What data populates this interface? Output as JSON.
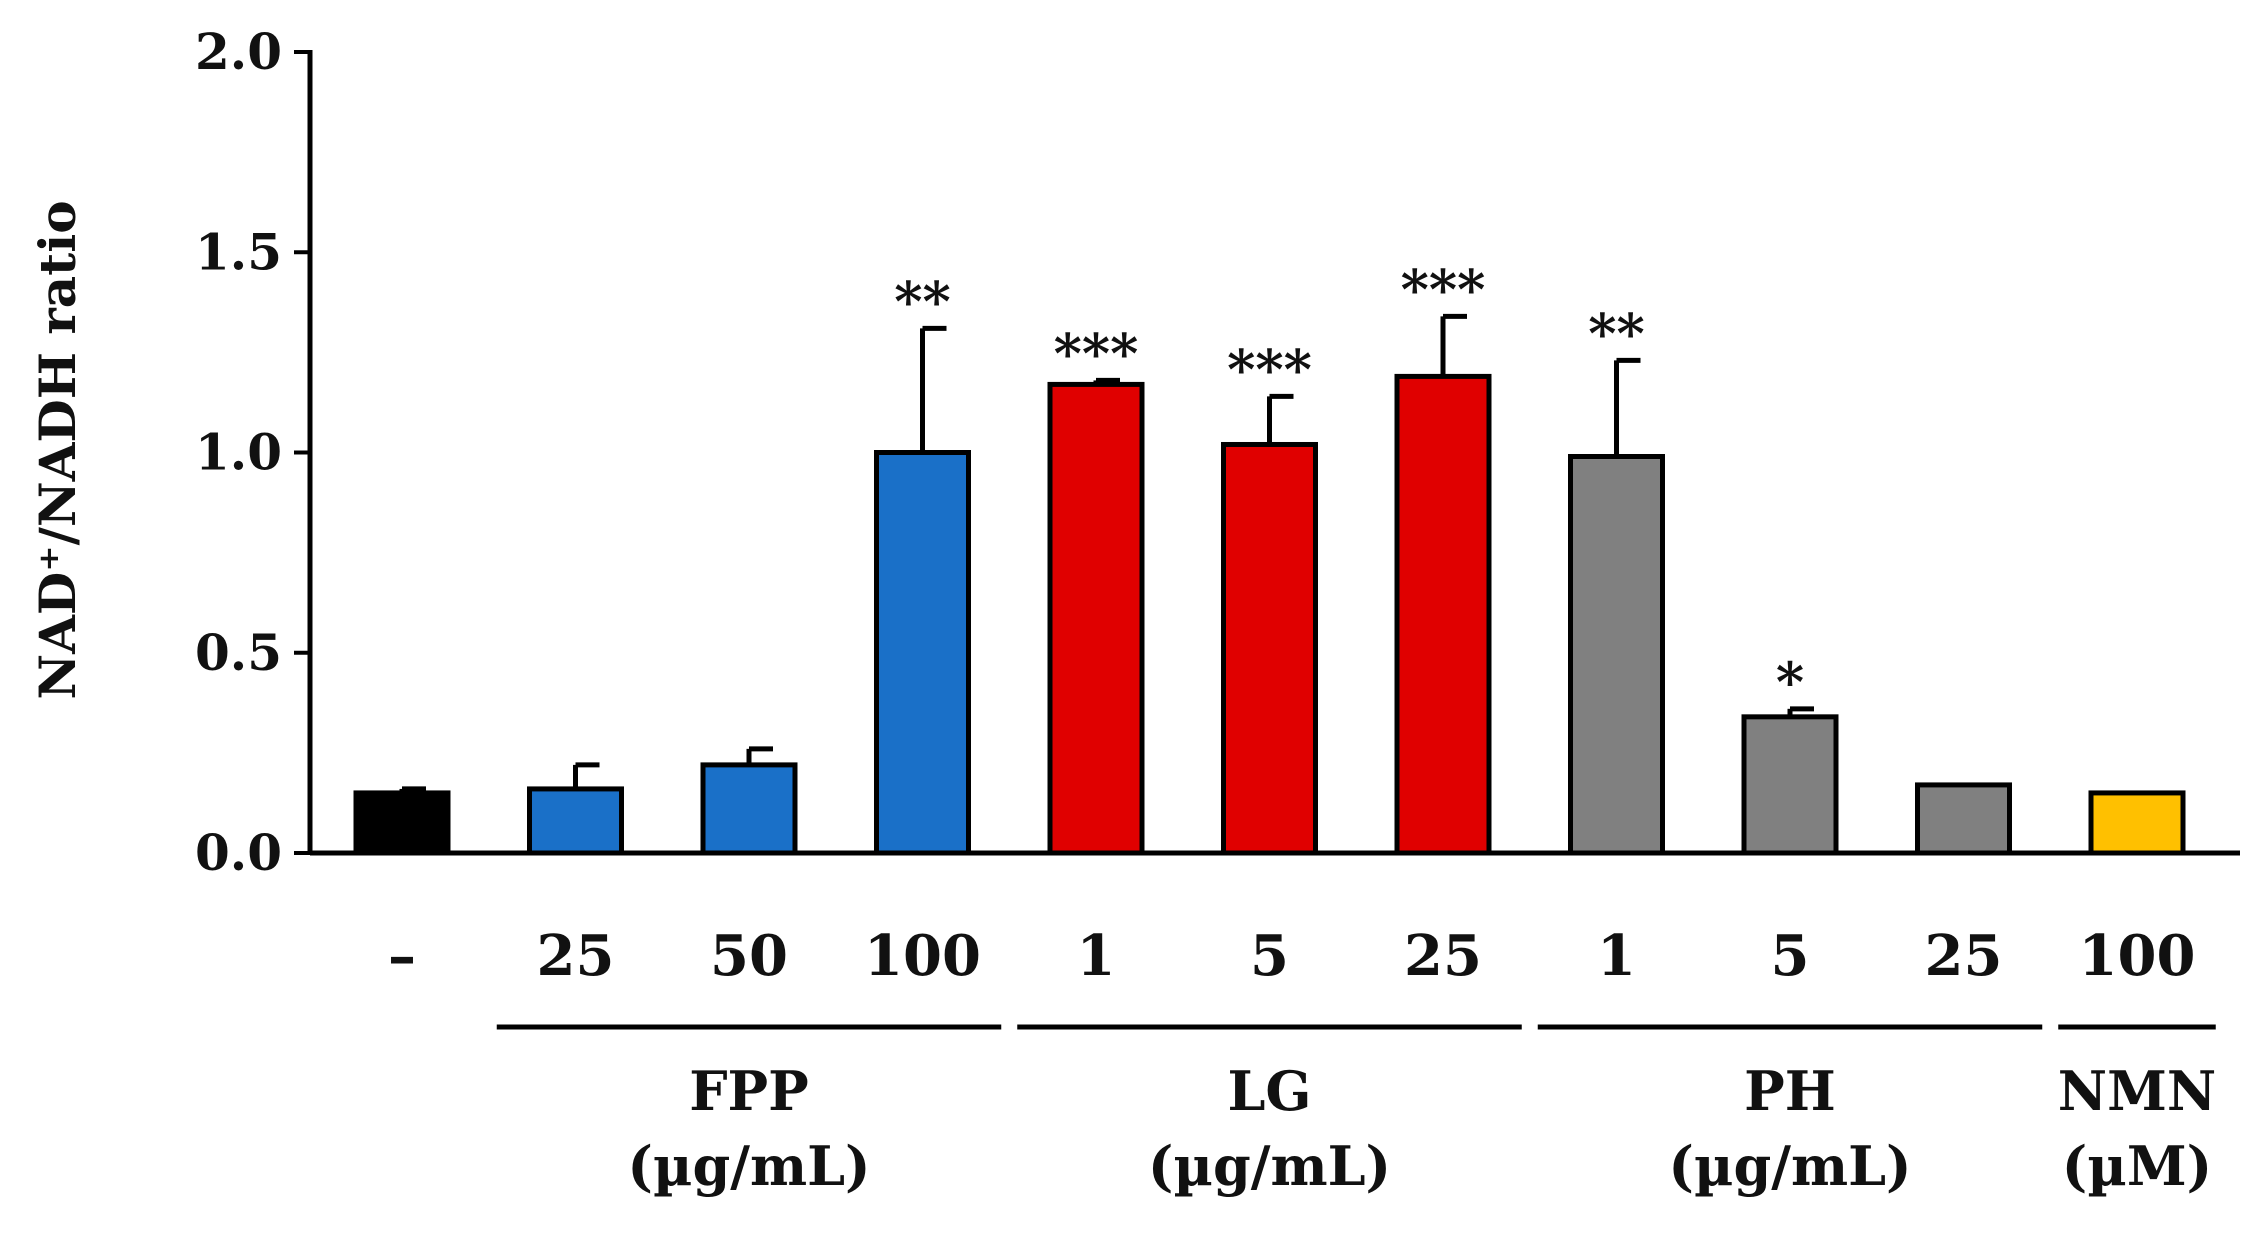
{
  "chart_data": {
    "type": "bar",
    "title": "",
    "xlabel": "",
    "ylabel": "NAD⁺/NADH ratio",
    "ylim": [
      0,
      2.0
    ],
    "yticks": [
      "0.0",
      "0.5",
      "1.0",
      "1.5",
      "2.0"
    ],
    "ytick_values": [
      0,
      0.5,
      1.0,
      1.5,
      2.0
    ],
    "grid": false,
    "categories": [
      "–",
      "25",
      "50",
      "100",
      "1",
      "5",
      "25",
      "1",
      "5",
      "25",
      "100"
    ],
    "values": [
      0.15,
      0.16,
      0.22,
      1.0,
      1.17,
      1.02,
      1.19,
      0.99,
      0.34,
      0.17,
      0.15
    ],
    "errors": [
      0.01,
      0.06,
      0.04,
      0.31,
      0.01,
      0.12,
      0.15,
      0.24,
      0.02,
      0.0,
      0.0
    ],
    "significance": [
      "",
      "",
      "",
      "**",
      "***",
      "***",
      "***",
      "**",
      "*",
      "",
      ""
    ],
    "colors": [
      "#000000",
      "#1a70c8",
      "#1a70c8",
      "#1a70c8",
      "#e00000",
      "#e00000",
      "#e00000",
      "#808080",
      "#808080",
      "#808080",
      "#ffc000"
    ],
    "groups": [
      {
        "name": "FPP",
        "unit": "(µg/mL)",
        "start": 1,
        "end": 3
      },
      {
        "name": "LG",
        "unit": "(µg/mL)",
        "start": 4,
        "end": 6
      },
      {
        "name": "PH",
        "unit": "(µg/mL)",
        "start": 7,
        "end": 9
      },
      {
        "name": "NMN",
        "unit": "(µM)",
        "start": 10,
        "end": 10
      }
    ]
  }
}
